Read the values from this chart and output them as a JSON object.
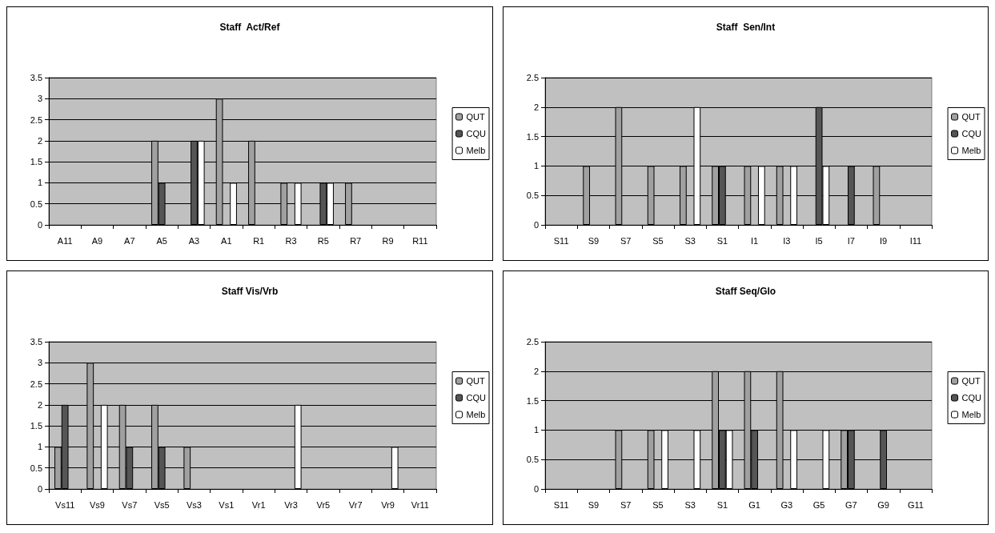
{
  "chart_data": [
    {
      "type": "bar",
      "title": "Staff  Act/Ref",
      "categories": [
        "A11",
        "A9",
        "A7",
        "A5",
        "A3",
        "A1",
        "R1",
        "R3",
        "R5",
        "R7",
        "R9",
        "R11"
      ],
      "series": [
        {
          "name": "QUT",
          "color": "#a0a0a0",
          "values": [
            0,
            0,
            0,
            2,
            0,
            3,
            2,
            1,
            0,
            1,
            0,
            0
          ]
        },
        {
          "name": "CQU",
          "color": "#555555",
          "values": [
            0,
            0,
            0,
            1,
            2,
            0,
            0,
            0,
            1,
            0,
            0,
            0
          ]
        },
        {
          "name": "Melb",
          "color": "#ffffff",
          "values": [
            0,
            0,
            0,
            0,
            2,
            1,
            0,
            1,
            1,
            0,
            0,
            0
          ]
        }
      ],
      "ylim": [
        0,
        3.5
      ],
      "yticks": [
        0,
        0.5,
        1,
        1.5,
        2,
        2.5,
        3,
        3.5
      ],
      "grid": "y",
      "legend": "right"
    },
    {
      "type": "bar",
      "title": "Staff  Sen/Int",
      "categories": [
        "S11",
        "S9",
        "S7",
        "S5",
        "S3",
        "S1",
        "I1",
        "I3",
        "I5",
        "I7",
        "I9",
        "I11"
      ],
      "series": [
        {
          "name": "QUT",
          "color": "#a0a0a0",
          "values": [
            0,
            1,
            2,
            1,
            1,
            1,
            1,
            1,
            0,
            0,
            1,
            0
          ]
        },
        {
          "name": "CQU",
          "color": "#555555",
          "values": [
            0,
            0,
            0,
            0,
            0,
            1,
            0,
            0,
            2,
            1,
            0,
            0
          ]
        },
        {
          "name": "Melb",
          "color": "#ffffff",
          "values": [
            0,
            0,
            0,
            0,
            2,
            0,
            1,
            1,
            1,
            0,
            0,
            0
          ]
        }
      ],
      "ylim": [
        0,
        2.5
      ],
      "yticks": [
        0,
        0.5,
        1,
        1.5,
        2,
        2.5
      ],
      "grid": "y",
      "legend": "right"
    },
    {
      "type": "bar",
      "title": "Staff Vis/Vrb",
      "categories": [
        "Vs11",
        "Vs9",
        "Vs7",
        "Vs5",
        "Vs3",
        "Vs1",
        "Vr1",
        "Vr3",
        "Vr5",
        "Vr7",
        "Vr9",
        "Vr11"
      ],
      "series": [
        {
          "name": "QUT",
          "color": "#a0a0a0",
          "values": [
            1,
            3,
            2,
            2,
            1,
            0,
            0,
            0,
            0,
            0,
            0,
            0
          ]
        },
        {
          "name": "CQU",
          "color": "#555555",
          "values": [
            2,
            0,
            1,
            1,
            0,
            0,
            0,
            0,
            0,
            0,
            0,
            0
          ]
        },
        {
          "name": "Melb",
          "color": "#ffffff",
          "values": [
            0,
            2,
            0,
            0,
            0,
            0,
            0,
            2,
            0,
            0,
            1,
            0
          ]
        }
      ],
      "ylim": [
        0,
        3.5
      ],
      "yticks": [
        0,
        0.5,
        1,
        1.5,
        2,
        2.5,
        3,
        3.5
      ],
      "grid": "y",
      "legend": "right"
    },
    {
      "type": "bar",
      "title": "Staff Seq/Glo",
      "categories": [
        "S11",
        "S9",
        "S7",
        "S5",
        "S3",
        "S1",
        "G1",
        "G3",
        "G5",
        "G7",
        "G9",
        "G11"
      ],
      "series": [
        {
          "name": "QUT",
          "color": "#a0a0a0",
          "values": [
            0,
            0,
            1,
            1,
            0,
            2,
            2,
            2,
            0,
            1,
            0,
            0
          ]
        },
        {
          "name": "CQU",
          "color": "#555555",
          "values": [
            0,
            0,
            0,
            0,
            0,
            1,
            1,
            0,
            0,
            1,
            1,
            0
          ]
        },
        {
          "name": "Melb",
          "color": "#ffffff",
          "values": [
            0,
            0,
            0,
            1,
            1,
            1,
            0,
            1,
            1,
            0,
            0,
            0
          ]
        }
      ],
      "ylim": [
        0,
        2.5
      ],
      "yticks": [
        0,
        0.5,
        1,
        1.5,
        2,
        2.5
      ],
      "grid": "y",
      "legend": "right"
    }
  ]
}
